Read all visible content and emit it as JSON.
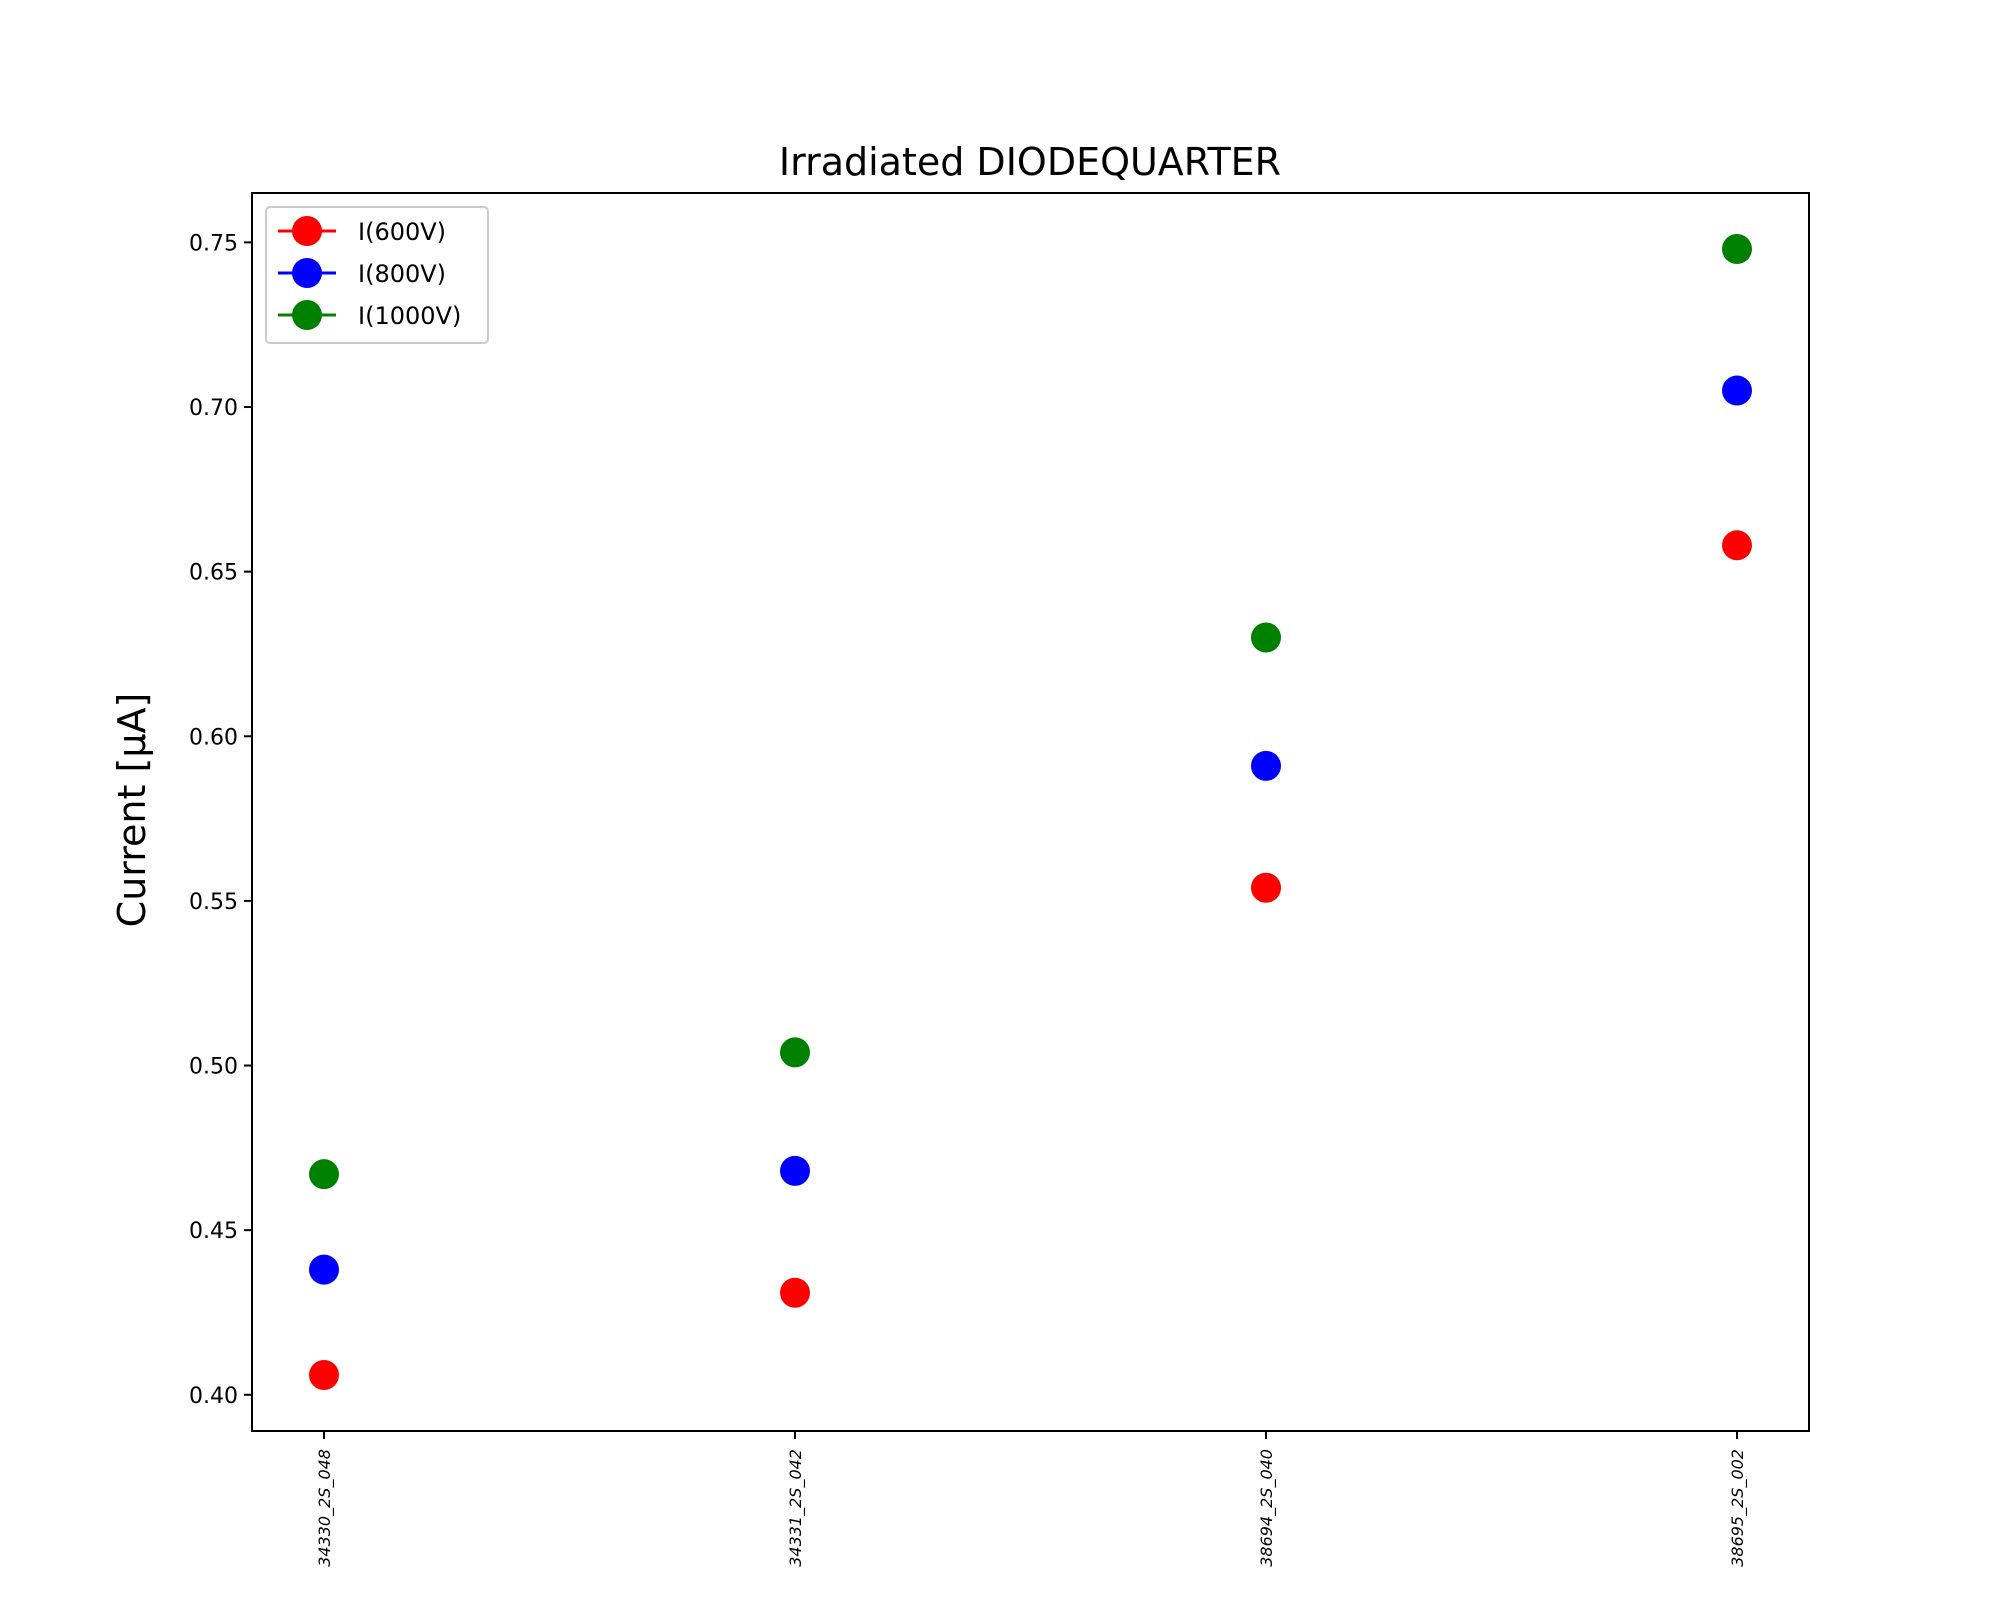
{
  "chart_data": {
    "type": "scatter",
    "title": "Irradiated DIODEQUARTER",
    "xlabel": "",
    "ylabel": "Current [μA]",
    "categories": [
      "34330_2S_048",
      "34331_2S_042",
      "38694_2S_040",
      "38695_2S_002"
    ],
    "yticks": [
      "0.40",
      "0.45",
      "0.50",
      "0.55",
      "0.60",
      "0.65",
      "0.70",
      "0.75"
    ],
    "ylim": [
      0.389,
      0.765
    ],
    "grid": false,
    "legend_placement": "top-left",
    "series": [
      {
        "name": "I(600V)",
        "color": "#ff0000",
        "values": [
          0.406,
          0.431,
          0.554,
          0.658
        ]
      },
      {
        "name": "I(800V)",
        "color": "#0000ff",
        "values": [
          0.438,
          0.468,
          0.591,
          0.705
        ]
      },
      {
        "name": "I(1000V)",
        "color": "#008000",
        "values": [
          0.467,
          0.504,
          0.63,
          0.748
        ]
      }
    ]
  }
}
